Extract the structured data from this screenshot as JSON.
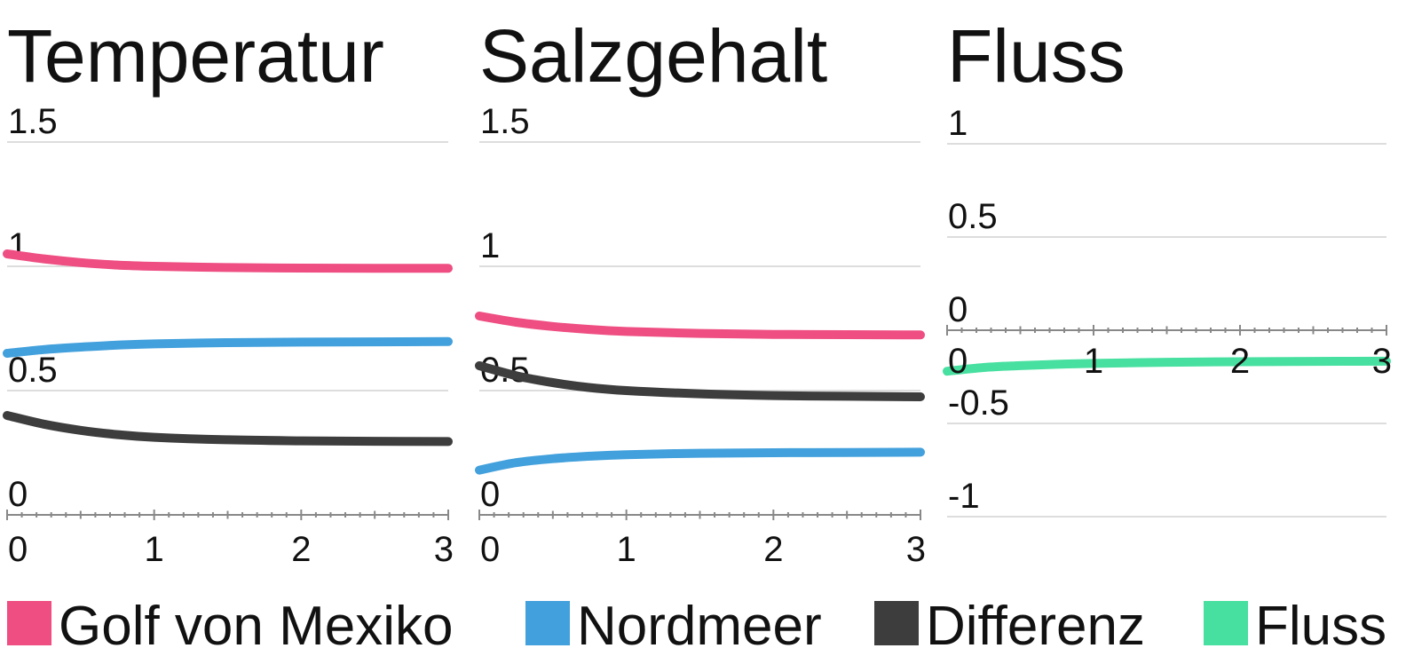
{
  "colors": {
    "golf": "#ee4e82",
    "nordmeer": "#42a0dc",
    "differenz": "#3d3d3d",
    "fluss": "#47e0a0",
    "grid": "#dddddd",
    "axis": "#888888"
  },
  "legend": [
    {
      "label": "Golf von Mexiko",
      "color": "#ee4e82"
    },
    {
      "label": "Nordmeer",
      "color": "#42a0dc"
    },
    {
      "label": "Differenz",
      "color": "#3d3d3d"
    },
    {
      "label": "Fluss",
      "color": "#47e0a0"
    }
  ],
  "chart_data": [
    {
      "type": "line",
      "title": "Temperatur",
      "xlim": [
        0,
        3
      ],
      "ylim": [
        0,
        1.5
      ],
      "x_ticks": [
        "0",
        "1",
        "2",
        "3"
      ],
      "y_ticks": [
        "0",
        "0.5",
        "1",
        "1.5"
      ],
      "grid": true,
      "series": [
        {
          "name": "Golf von Mexiko",
          "color": "#ee4e82",
          "x": [
            0,
            0.25,
            0.5,
            0.75,
            1,
            1.5,
            2,
            2.5,
            3
          ],
          "y": [
            1.05,
            1.03,
            1.015,
            1.005,
            1.0,
            0.995,
            0.993,
            0.992,
            0.992
          ]
        },
        {
          "name": "Nordmeer",
          "color": "#42a0dc",
          "x": [
            0,
            0.25,
            0.5,
            0.75,
            1,
            1.5,
            2,
            2.5,
            3
          ],
          "y": [
            0.65,
            0.665,
            0.675,
            0.683,
            0.688,
            0.693,
            0.695,
            0.696,
            0.697
          ]
        },
        {
          "name": "Differenz",
          "color": "#3d3d3d",
          "x": [
            0,
            0.25,
            0.5,
            0.75,
            1,
            1.5,
            2,
            2.5,
            3
          ],
          "y": [
            0.4,
            0.365,
            0.34,
            0.323,
            0.312,
            0.302,
            0.298,
            0.296,
            0.295
          ]
        }
      ]
    },
    {
      "type": "line",
      "title": "Salzgehalt",
      "xlim": [
        0,
        3
      ],
      "ylim": [
        0,
        1.5
      ],
      "x_ticks": [
        "0",
        "1",
        "2",
        "3"
      ],
      "y_ticks": [
        "0",
        "0.5",
        "1",
        "1.5"
      ],
      "grid": true,
      "series": [
        {
          "name": "Golf von Mexiko",
          "color": "#ee4e82",
          "x": [
            0,
            0.25,
            0.5,
            0.75,
            1,
            1.5,
            2,
            2.5,
            3
          ],
          "y": [
            0.8,
            0.775,
            0.758,
            0.746,
            0.738,
            0.73,
            0.726,
            0.725,
            0.724
          ]
        },
        {
          "name": "Nordmeer",
          "color": "#42a0dc",
          "x": [
            0,
            0.25,
            0.5,
            0.75,
            1,
            1.5,
            2,
            2.5,
            3
          ],
          "y": [
            0.18,
            0.21,
            0.226,
            0.236,
            0.242,
            0.248,
            0.25,
            0.251,
            0.252
          ]
        },
        {
          "name": "Differenz",
          "color": "#3d3d3d",
          "x": [
            0,
            0.25,
            0.5,
            0.75,
            1,
            1.5,
            2,
            2.5,
            3
          ],
          "y": [
            0.6,
            0.56,
            0.532,
            0.512,
            0.5,
            0.487,
            0.48,
            0.477,
            0.475
          ]
        }
      ]
    },
    {
      "type": "line",
      "title": "Fluss",
      "xlim": [
        0,
        3
      ],
      "ylim": [
        -1,
        1
      ],
      "x_ticks": [
        "0",
        "1",
        "2",
        "3"
      ],
      "y_ticks": [
        "-1",
        "-0.5",
        "0",
        "0.5",
        "1"
      ],
      "grid": true,
      "series": [
        {
          "name": "Fluss",
          "color": "#47e0a0",
          "x": [
            0,
            0.25,
            0.5,
            0.75,
            1,
            1.5,
            2,
            2.5,
            3
          ],
          "y": [
            -0.22,
            -0.2,
            -0.19,
            -0.183,
            -0.178,
            -0.172,
            -0.169,
            -0.167,
            -0.166
          ]
        }
      ]
    }
  ]
}
